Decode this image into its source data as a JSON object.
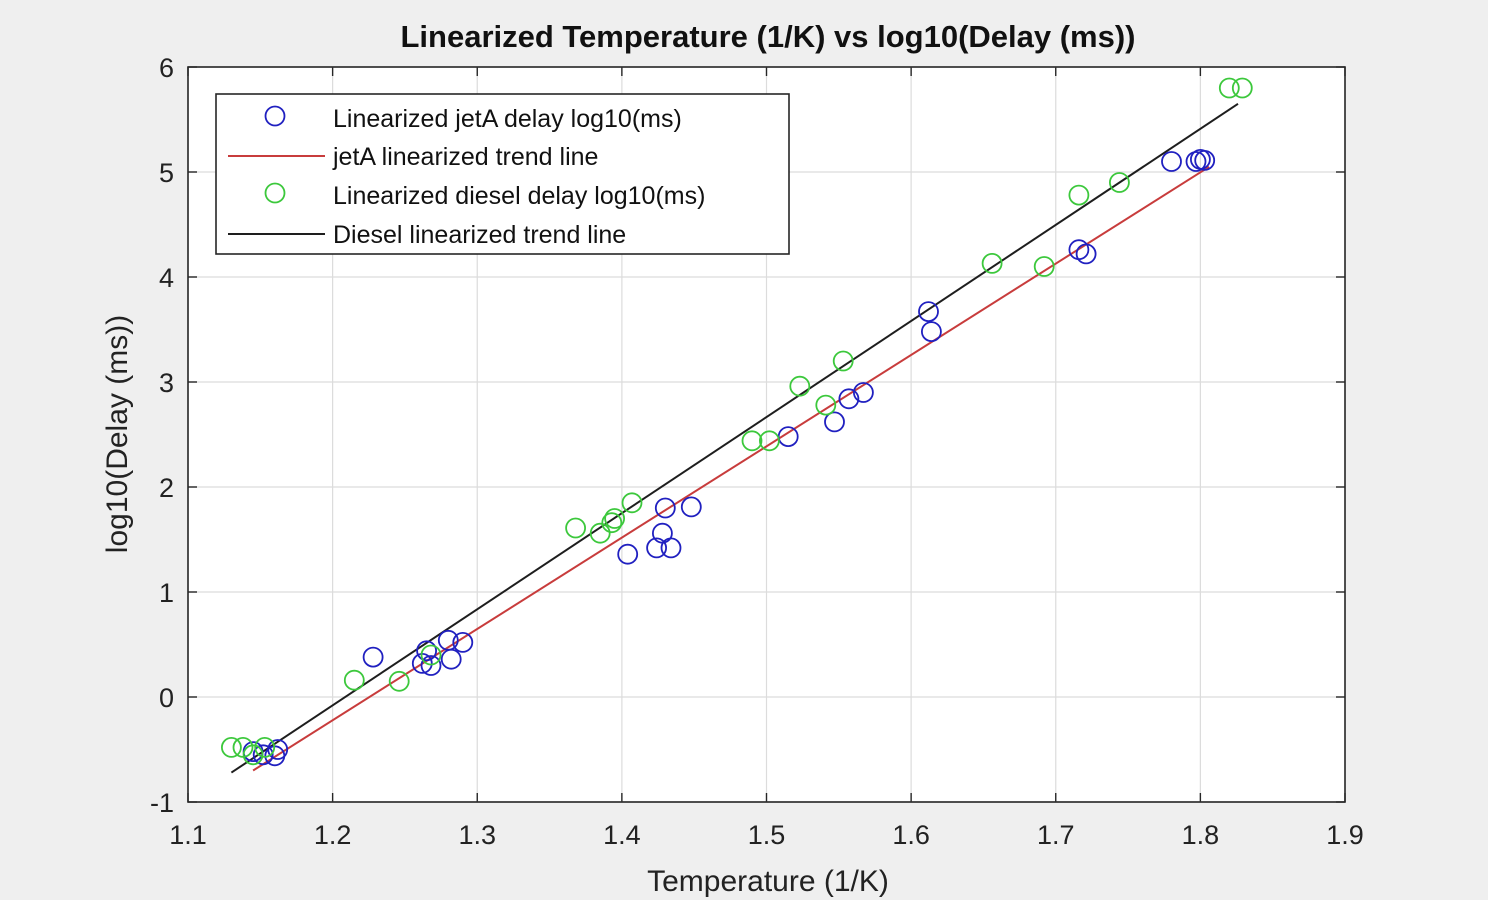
{
  "chart_data": {
    "type": "scatter",
    "title": "Linearized Temperature (1/K) vs log10(Delay (ms))",
    "xlabel": "Temperature (1/K)",
    "ylabel": "log10(Delay (ms))",
    "xlim": [
      1.1,
      1.9
    ],
    "ylim": [
      -1,
      6
    ],
    "xticks": [
      "1.1",
      "1.2",
      "1.3",
      "1.4",
      "1.5",
      "1.6",
      "1.7",
      "1.8",
      "1.9"
    ],
    "yticks": [
      "-1",
      "0",
      "1",
      "2",
      "3",
      "4",
      "5",
      "6"
    ],
    "grid": true,
    "legend_position": "top-left",
    "series": [
      {
        "name": "Linearized jetA delay log10(ms)",
        "kind": "markers",
        "marker": "circle",
        "color": "#2020c0",
        "points": [
          [
            1.145,
            -0.52
          ],
          [
            1.152,
            -0.55
          ],
          [
            1.16,
            -0.56
          ],
          [
            1.162,
            -0.5
          ],
          [
            1.228,
            0.38
          ],
          [
            1.262,
            0.32
          ],
          [
            1.265,
            0.44
          ],
          [
            1.268,
            0.3
          ],
          [
            1.28,
            0.54
          ],
          [
            1.282,
            0.36
          ],
          [
            1.29,
            0.52
          ],
          [
            1.404,
            1.36
          ],
          [
            1.424,
            1.42
          ],
          [
            1.428,
            1.56
          ],
          [
            1.43,
            1.8
          ],
          [
            1.434,
            1.42
          ],
          [
            1.448,
            1.81
          ],
          [
            1.515,
            2.48
          ],
          [
            1.547,
            2.62
          ],
          [
            1.557,
            2.84
          ],
          [
            1.567,
            2.9
          ],
          [
            1.612,
            3.67
          ],
          [
            1.614,
            3.48
          ],
          [
            1.716,
            4.26
          ],
          [
            1.721,
            4.22
          ],
          [
            1.78,
            5.1
          ],
          [
            1.797,
            5.1
          ],
          [
            1.8,
            5.12
          ],
          [
            1.803,
            5.11
          ]
        ]
      },
      {
        "name": "jetA linearized trend line",
        "kind": "line",
        "color": "#c83c3c",
        "points": [
          [
            1.145,
            -0.7
          ],
          [
            1.806,
            5.05
          ]
        ]
      },
      {
        "name": "Linearized diesel delay log10(ms)",
        "kind": "markers",
        "marker": "circle",
        "color": "#3cc83c",
        "points": [
          [
            1.13,
            -0.48
          ],
          [
            1.138,
            -0.48
          ],
          [
            1.145,
            -0.55
          ],
          [
            1.153,
            -0.48
          ],
          [
            1.215,
            0.16
          ],
          [
            1.246,
            0.15
          ],
          [
            1.268,
            0.4
          ],
          [
            1.368,
            1.61
          ],
          [
            1.385,
            1.56
          ],
          [
            1.393,
            1.66
          ],
          [
            1.395,
            1.7
          ],
          [
            1.407,
            1.85
          ],
          [
            1.49,
            2.44
          ],
          [
            1.502,
            2.44
          ],
          [
            1.523,
            2.96
          ],
          [
            1.541,
            2.78
          ],
          [
            1.553,
            3.2
          ],
          [
            1.656,
            4.13
          ],
          [
            1.692,
            4.1
          ],
          [
            1.716,
            4.78
          ],
          [
            1.744,
            4.9
          ],
          [
            1.82,
            5.8
          ],
          [
            1.829,
            5.8
          ]
        ]
      },
      {
        "name": "Diesel linearized trend line",
        "kind": "line",
        "color": "#1e1e1e",
        "points": [
          [
            1.13,
            -0.72
          ],
          [
            1.826,
            5.65
          ]
        ]
      }
    ]
  }
}
